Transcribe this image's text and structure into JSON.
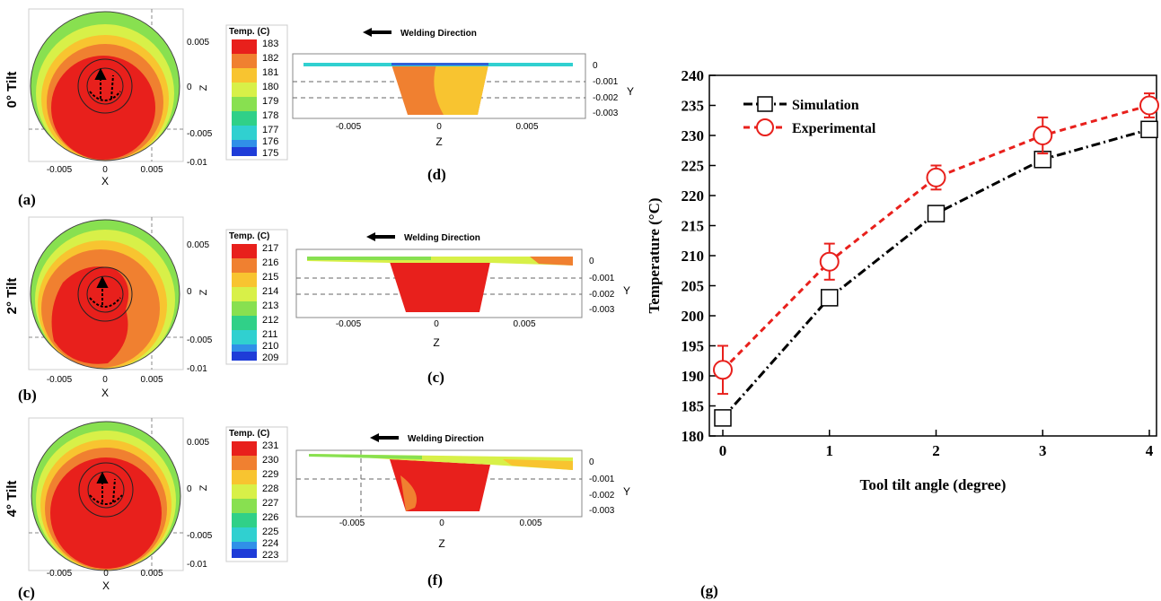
{
  "colors": {
    "simulation": "#000000",
    "experimental": "#e8201c",
    "field_low": "#1e3cd8",
    "field_high": "#e8201c"
  },
  "common": {
    "welding_direction": "Welding Direction",
    "legend_title": "Temp. (C)",
    "x_label": "X",
    "z_label": "Z",
    "y_label": "Y",
    "top_x_ticks": [
      "-0.005",
      "0",
      "0.005"
    ],
    "top_z_ticks": [
      "0.005",
      "0",
      "-0.005",
      "-0.01"
    ],
    "side_z_ticks": [
      "-0.005",
      "0",
      "0.005"
    ],
    "side_y_ticks": [
      "0",
      "-0.001",
      "-0.002",
      "-0.003"
    ]
  },
  "rows": [
    {
      "row_label": "0° Tilt",
      "top_panel_label": "(a)",
      "side_panel_label": "(d)",
      "legend_values": [
        "183",
        "182",
        "181",
        "180",
        "179",
        "178",
        "177",
        "176",
        "175"
      ],
      "top_x_ticks": [
        "0",
        "0.005"
      ]
    },
    {
      "row_label": "2° Tilt",
      "top_panel_label": "(b)",
      "side_panel_label": "(c)",
      "legend_values": [
        "217",
        "216",
        "215",
        "214",
        "213",
        "212",
        "211",
        "210",
        "209"
      ],
      "top_x_ticks": [
        "-0.005",
        "0",
        "0.005"
      ]
    },
    {
      "row_label": "4° Tilt",
      "top_panel_label": "(c)",
      "side_panel_label": "(f)",
      "legend_values": [
        "231",
        "230",
        "229",
        "228",
        "227",
        "226",
        "225",
        "224",
        "223"
      ],
      "top_x_ticks": [
        "-0.005",
        "0",
        "0.005"
      ]
    }
  ],
  "chart_data": {
    "type": "line",
    "panel_label": "(g)",
    "xlabel": "Tool tilt angle (degree)",
    "ylabel": "Temperature (°C)",
    "x": [
      0,
      1,
      2,
      3,
      4
    ],
    "xlim": [
      0,
      4
    ],
    "ylim": [
      180,
      240
    ],
    "yticks": [
      180,
      185,
      190,
      195,
      200,
      205,
      210,
      215,
      220,
      225,
      230,
      235,
      240
    ],
    "legend_position": "top-left",
    "series": [
      {
        "name": "Simulation",
        "values": [
          183,
          203,
          217,
          226,
          231
        ],
        "marker": "square",
        "line": "dash-dot",
        "color": "#000000"
      },
      {
        "name": "Experimental",
        "values": [
          191,
          209,
          223,
          230,
          235
        ],
        "error": [
          4,
          3,
          2,
          3,
          2
        ],
        "marker": "circle",
        "line": "dashed",
        "color": "#e8201c"
      }
    ]
  }
}
